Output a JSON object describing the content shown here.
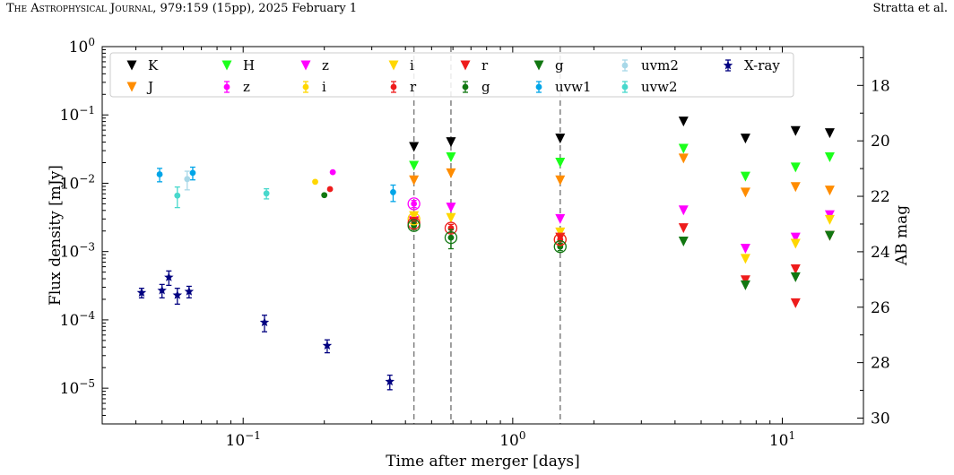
{
  "header": {
    "journal": "The Astrophysical Journal",
    "citation": ", 979:159 (15pp), 2025 February 1",
    "authors": "Stratta et al."
  },
  "chart_data": {
    "type": "scatter",
    "title": "",
    "xlabel": "Time after merger [days]",
    "ylabel": "Flux density [mJy]",
    "y2label": "AB mag",
    "xscale": "log",
    "yscale": "log",
    "xlim": [
      0.03,
      20
    ],
    "ylim": [
      3e-06,
      1
    ],
    "y2lim": [
      16.6,
      30.21
    ],
    "x_ticks": [
      {
        "value": 0.1,
        "mant": "10",
        "exp": "−1"
      },
      {
        "value": 1,
        "mant": "10",
        "exp": "0"
      },
      {
        "value": 10,
        "mant": "10",
        "exp": "1"
      }
    ],
    "y_ticks": [
      {
        "value": 1e-05,
        "mant": "10",
        "exp": "−5"
      },
      {
        "value": 0.0001,
        "mant": "10",
        "exp": "−4"
      },
      {
        "value": 0.001,
        "mant": "10",
        "exp": "−3"
      },
      {
        "value": 0.01,
        "mant": "10",
        "exp": "−2"
      },
      {
        "value": 0.1,
        "mant": "10",
        "exp": "−1"
      },
      {
        "value": 1,
        "mant": "10",
        "exp": "0"
      }
    ],
    "y2_ticks": [
      18,
      20,
      22,
      24,
      26,
      28,
      30
    ],
    "vlines": [
      0.43,
      0.59,
      1.5
    ],
    "legend_position": "top",
    "series": [
      {
        "name": "K",
        "kind": "upper",
        "color": "#000000",
        "points": [
          [
            0.43,
            0.034
          ],
          [
            0.59,
            0.04
          ],
          [
            1.5,
            0.045
          ],
          [
            4.3,
            0.08
          ],
          [
            7.3,
            0.045
          ],
          [
            11.2,
            0.058
          ],
          [
            15.0,
            0.054
          ]
        ]
      },
      {
        "name": "J",
        "kind": "upper",
        "color": "#ff8c00",
        "points": [
          [
            0.43,
            0.011
          ],
          [
            0.59,
            0.014
          ],
          [
            1.5,
            0.011
          ],
          [
            4.3,
            0.023
          ],
          [
            7.3,
            0.0073
          ],
          [
            11.2,
            0.0088
          ],
          [
            15.0,
            0.0078
          ]
        ]
      },
      {
        "name": "H",
        "kind": "upper",
        "color": "#1bff1b",
        "points": [
          [
            0.43,
            0.018
          ],
          [
            0.59,
            0.024
          ],
          [
            1.5,
            0.02
          ],
          [
            4.3,
            0.032
          ],
          [
            7.3,
            0.0125
          ],
          [
            11.2,
            0.017
          ],
          [
            15.0,
            0.024
          ]
        ]
      },
      {
        "name": "z",
        "kind": "point",
        "color": "#ff00ff",
        "points": [
          [
            0.215,
            0.0145,
            0
          ],
          [
            0.43,
            0.005,
            0.0006
          ]
        ]
      },
      {
        "name": "z",
        "kind": "upper",
        "color": "#ff00ff",
        "points": [
          [
            0.43,
            0.0028
          ],
          [
            0.59,
            0.0044
          ],
          [
            1.5,
            0.003
          ],
          [
            4.3,
            0.004
          ],
          [
            7.3,
            0.0011
          ],
          [
            11.2,
            0.0016
          ],
          [
            15.0,
            0.0034
          ]
        ]
      },
      {
        "name": "i",
        "kind": "point",
        "color": "#ffd700",
        "points": [
          [
            0.185,
            0.0105,
            0
          ],
          [
            0.43,
            0.003,
            0.0003
          ]
        ]
      },
      {
        "name": "i",
        "kind": "upper",
        "color": "#ffd700",
        "points": [
          [
            0.43,
            0.0033
          ],
          [
            0.59,
            0.0031
          ],
          [
            1.5,
            0.0019
          ],
          [
            7.3,
            0.00078
          ],
          [
            11.2,
            0.0013
          ],
          [
            15.0,
            0.0029
          ]
        ]
      },
      {
        "name": "r",
        "kind": "point",
        "color": "#ee1c1c",
        "points": [
          [
            0.21,
            0.0082,
            0
          ],
          [
            0.43,
            0.0026,
            0.0002
          ],
          [
            0.59,
            0.0022,
            0.0003
          ],
          [
            1.5,
            0.0015,
            0.0002
          ]
        ]
      },
      {
        "name": "r",
        "kind": "upper",
        "color": "#ee1c1c",
        "points": [
          [
            0.43,
            0.0027
          ],
          [
            1.5,
            0.0016
          ],
          [
            4.3,
            0.0022
          ],
          [
            7.3,
            0.00038
          ],
          [
            11.2,
            0.00055
          ],
          [
            11.2,
            0.000175
          ],
          [
            15.0,
            0.0017
          ]
        ]
      },
      {
        "name": "g",
        "kind": "point",
        "color": "#117711",
        "points": [
          [
            0.2,
            0.0067,
            0
          ],
          [
            0.43,
            0.0024,
            0.0003
          ],
          [
            0.59,
            0.0016,
            0.0005
          ],
          [
            1.5,
            0.00118,
            0.00015
          ]
        ]
      },
      {
        "name": "g",
        "kind": "upper",
        "color": "#117711",
        "points": [
          [
            4.3,
            0.0014
          ],
          [
            7.3,
            0.00032
          ],
          [
            11.2,
            0.00042
          ],
          [
            15.0,
            0.0017
          ]
        ]
      },
      {
        "name": "uvw1",
        "kind": "point",
        "color": "#00a5e8",
        "points": [
          [
            0.049,
            0.0135,
            0.003
          ],
          [
            0.065,
            0.0142,
            0.003
          ],
          [
            0.36,
            0.0074,
            0.002
          ]
        ]
      },
      {
        "name": "uvm2",
        "kind": "point",
        "color": "#a8d8e8",
        "points": [
          [
            0.062,
            0.0115,
            0.0035
          ]
        ]
      },
      {
        "name": "uvw2",
        "kind": "point",
        "color": "#48d8cc",
        "points": [
          [
            0.057,
            0.0066,
            0.0022
          ],
          [
            0.122,
            0.0071,
            0.0012
          ]
        ]
      },
      {
        "name": "X-ray",
        "kind": "star",
        "color": "#000080",
        "points": [
          [
            0.042,
            0.00025,
            4e-05
          ],
          [
            0.05,
            0.00027,
            6e-05
          ],
          [
            0.053,
            0.00042,
            0.0001
          ],
          [
            0.057,
            0.00023,
            6e-05
          ],
          [
            0.063,
            0.00026,
            5e-05
          ],
          [
            0.12,
            9.2e-05,
            2.5e-05
          ],
          [
            0.205,
            4.2e-05,
            9e-06
          ],
          [
            0.35,
            1.25e-05,
            3e-06
          ]
        ]
      }
    ],
    "legend": [
      {
        "label": "K",
        "kind": "upper",
        "color": "#000000"
      },
      {
        "label": "J",
        "kind": "upper",
        "color": "#ff8c00"
      },
      {
        "label": "H",
        "kind": "upper",
        "color": "#1bff1b"
      },
      {
        "label": "z",
        "kind": "point",
        "color": "#ff00ff"
      },
      {
        "label": "z",
        "kind": "upper",
        "color": "#ff00ff"
      },
      {
        "label": "i",
        "kind": "point",
        "color": "#ffd700"
      },
      {
        "label": "i",
        "kind": "upper",
        "color": "#ffd700"
      },
      {
        "label": "r",
        "kind": "point",
        "color": "#ee1c1c"
      },
      {
        "label": "r",
        "kind": "upper",
        "color": "#ee1c1c"
      },
      {
        "label": "g",
        "kind": "point",
        "color": "#117711"
      },
      {
        "label": "g",
        "kind": "upper",
        "color": "#117711"
      },
      {
        "label": "uvw1",
        "kind": "point",
        "color": "#00a5e8"
      },
      {
        "label": "uvm2",
        "kind": "point",
        "color": "#a8d8e8"
      },
      {
        "label": "uvw2",
        "kind": "point",
        "color": "#48d8cc"
      },
      {
        "label": "X-ray",
        "kind": "star",
        "color": "#000080"
      }
    ],
    "circled": [
      {
        "x": 0.43,
        "y": 0.005,
        "color": "#ff00ff"
      },
      {
        "x": 0.43,
        "y": 0.003,
        "color": "#ffd700"
      },
      {
        "x": 0.43,
        "y": 0.0026,
        "color": "#ee1c1c"
      },
      {
        "x": 0.43,
        "y": 0.0024,
        "color": "#117711"
      },
      {
        "x": 0.59,
        "y": 0.0022,
        "color": "#ee1c1c"
      },
      {
        "x": 0.59,
        "y": 0.0016,
        "color": "#117711"
      },
      {
        "x": 1.5,
        "y": 0.0015,
        "color": "#ffd700"
      },
      {
        "x": 1.5,
        "y": 0.0015,
        "color": "#ee1c1c"
      },
      {
        "x": 1.5,
        "y": 0.00118,
        "color": "#117711"
      }
    ]
  }
}
